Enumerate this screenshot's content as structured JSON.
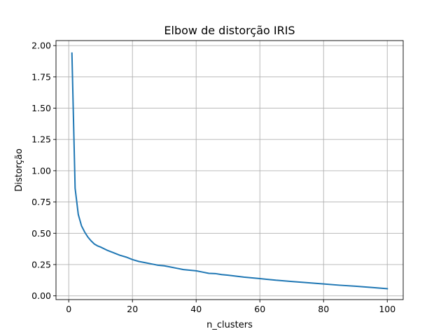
{
  "chart_data": {
    "type": "line",
    "title": "Elbow de distorção IRIS",
    "xlabel": "n_clusters",
    "ylabel": "Distorção",
    "xlim": [
      -4,
      105
    ],
    "ylim": [
      -0.03,
      2.04
    ],
    "xticks": [
      0,
      20,
      40,
      60,
      80,
      100
    ],
    "yticks": [
      0.0,
      0.25,
      0.5,
      0.75,
      1.0,
      1.25,
      1.5,
      1.75,
      2.0
    ],
    "xtick_labels": [
      "0",
      "20",
      "40",
      "60",
      "80",
      "100"
    ],
    "ytick_labels": [
      "0.00",
      "0.25",
      "0.50",
      "0.75",
      "1.00",
      "1.25",
      "1.50",
      "1.75",
      "2.00"
    ],
    "grid": true,
    "colors": {
      "line": "#1f77b4"
    },
    "series": [
      {
        "x": [
          1,
          2,
          3,
          4,
          5,
          6,
          7,
          8,
          9,
          10,
          12,
          14,
          16,
          18,
          20,
          22,
          24,
          26,
          28,
          30,
          32,
          34,
          36,
          38,
          40,
          42,
          44,
          46,
          48,
          50,
          55,
          60,
          65,
          70,
          75,
          80,
          85,
          90,
          95,
          100
        ],
        "y": [
          1.94,
          0.86,
          0.65,
          0.56,
          0.51,
          0.47,
          0.44,
          0.415,
          0.4,
          0.39,
          0.365,
          0.345,
          0.325,
          0.31,
          0.29,
          0.275,
          0.265,
          0.255,
          0.245,
          0.24,
          0.23,
          0.22,
          0.21,
          0.205,
          0.2,
          0.19,
          0.18,
          0.178,
          0.17,
          0.165,
          0.15,
          0.138,
          0.125,
          0.115,
          0.105,
          0.095,
          0.085,
          0.077,
          0.067,
          0.057
        ]
      }
    ]
  }
}
